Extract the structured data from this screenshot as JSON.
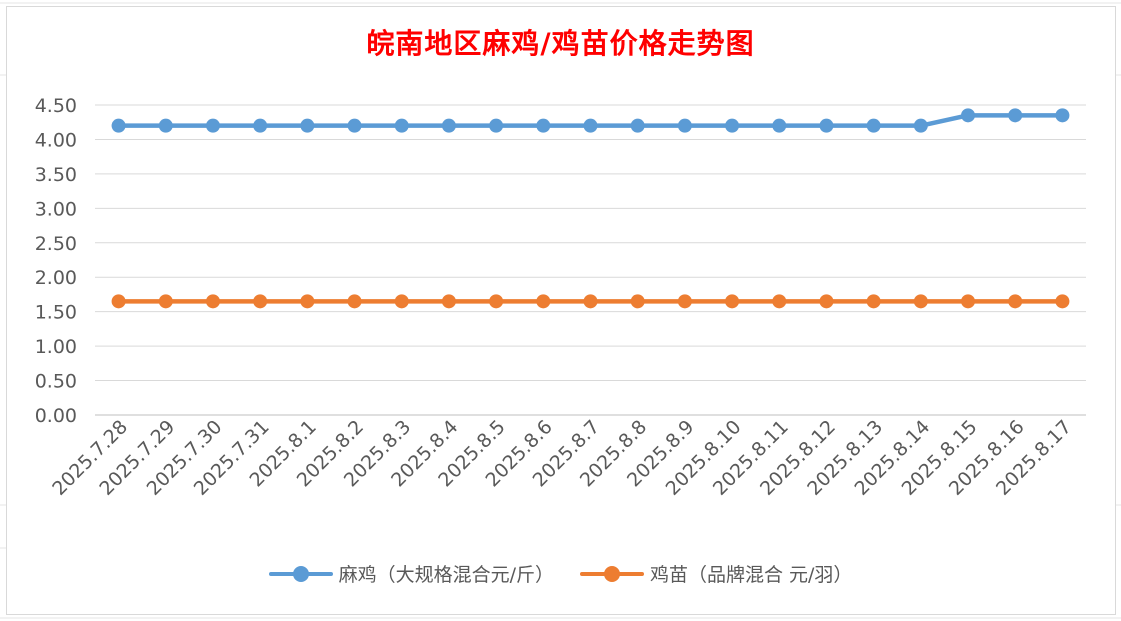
{
  "chart_data": {
    "type": "line",
    "title": "皖南地区麻鸡/鸡苗价格走势图",
    "xlabel": "",
    "ylabel": "",
    "categories": [
      "2025.7.28",
      "2025.7.29",
      "2025.7.30",
      "2025.7.31",
      "2025.8.1",
      "2025.8.2",
      "2025.8.3",
      "2025.8.4",
      "2025.8.5",
      "2025.8.6",
      "2025.8.7",
      "2025.8.8",
      "2025.8.9",
      "2025.8.10",
      "2025.8.11",
      "2025.8.12",
      "2025.8.13",
      "2025.8.14",
      "2025.8.15",
      "2025.8.16",
      "2025.8.17"
    ],
    "y_ticks": [
      "0.00",
      "0.50",
      "1.00",
      "1.50",
      "2.00",
      "2.50",
      "3.00",
      "3.50",
      "4.00",
      "4.50"
    ],
    "ylim": [
      0,
      4.5
    ],
    "grid": true,
    "legend_position": "bottom",
    "series": [
      {
        "name": "麻鸡（大规格混合元/斤）",
        "color": "#5b9bd5",
        "values": [
          4.2,
          4.2,
          4.2,
          4.2,
          4.2,
          4.2,
          4.2,
          4.2,
          4.2,
          4.2,
          4.2,
          4.2,
          4.2,
          4.2,
          4.2,
          4.2,
          4.2,
          4.2,
          4.35,
          4.35,
          4.35
        ]
      },
      {
        "name": "鸡苗（品牌混合 元/羽）",
        "color": "#ed7d31",
        "values": [
          1.65,
          1.65,
          1.65,
          1.65,
          1.65,
          1.65,
          1.65,
          1.65,
          1.65,
          1.65,
          1.65,
          1.65,
          1.65,
          1.65,
          1.65,
          1.65,
          1.65,
          1.65,
          1.65,
          1.65,
          1.65
        ]
      }
    ]
  }
}
